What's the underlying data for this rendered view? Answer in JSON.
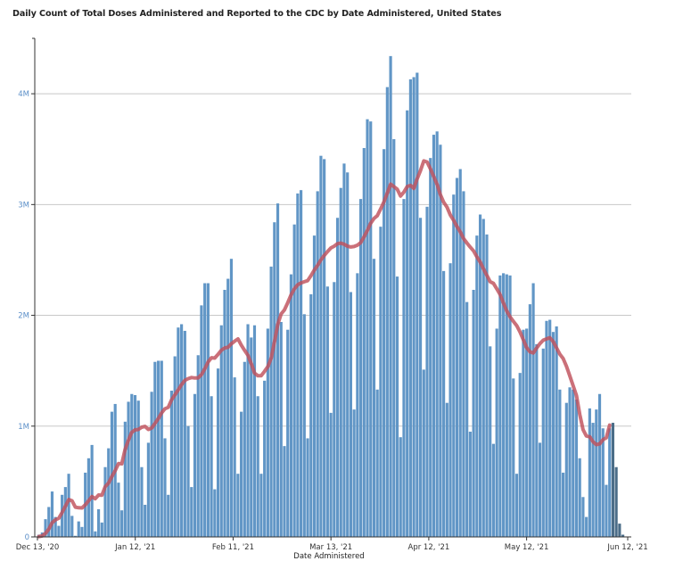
{
  "chart_data": {
    "type": "bar",
    "title": "Daily Count of Total Doses Administered and Reported to the CDC by Date Administered, United States",
    "xlabel": "Date Administered",
    "ylabel": "",
    "ylim": [
      0,
      4500000
    ],
    "y_ticks": [
      0,
      1000000,
      2000000,
      3000000,
      4000000
    ],
    "y_tick_labels": [
      "0",
      "1M",
      "2M",
      "3M",
      "4M"
    ],
    "x_range_days": [
      0,
      181
    ],
    "x_ticks_days": [
      0,
      30,
      60,
      90,
      120,
      150,
      181
    ],
    "x_tick_labels": [
      "Dec 13, '20",
      "Jan 12, '21",
      "Feb 11, '21",
      "Mar 13, '21",
      "Apr 12, '21",
      "May 12, '21",
      "Jun 12, '21"
    ],
    "grid": true,
    "start_date": "Dec 13, '20",
    "values_millions": [
      0.02,
      0.04,
      0.16,
      0.27,
      0.41,
      0.18,
      0.1,
      0.38,
      0.45,
      0.57,
      0.19,
      0.01,
      0.14,
      0.09,
      0.58,
      0.71,
      0.83,
      0.05,
      0.25,
      0.13,
      0.63,
      0.8,
      1.13,
      1.2,
      0.49,
      0.24,
      1.04,
      1.22,
      1.29,
      1.28,
      1.23,
      0.63,
      0.29,
      0.85,
      1.31,
      1.58,
      1.59,
      1.59,
      0.89,
      0.38,
      1.32,
      1.63,
      1.89,
      1.92,
      1.86,
      1.0,
      0.45,
      1.29,
      1.64,
      2.09,
      2.29,
      2.29,
      1.27,
      0.43,
      1.52,
      1.91,
      2.23,
      2.33,
      2.51,
      1.44,
      0.57,
      1.13,
      1.58,
      1.92,
      1.8,
      1.91,
      1.27,
      0.57,
      1.41,
      1.88,
      2.44,
      2.84,
      3.01,
      1.94,
      0.82,
      1.87,
      2.37,
      2.82,
      3.1,
      3.13,
      2.01,
      0.89,
      2.19,
      2.72,
      3.12,
      3.44,
      3.41,
      2.26,
      1.12,
      2.3,
      2.88,
      3.15,
      3.37,
      3.29,
      2.21,
      1.15,
      2.38,
      3.05,
      3.51,
      3.77,
      3.75,
      2.51,
      1.33,
      2.8,
      3.5,
      4.06,
      4.34,
      3.59,
      2.35,
      0.9,
      3.05,
      3.85,
      4.13,
      4.15,
      4.19,
      2.88,
      1.51,
      2.98,
      3.42,
      3.63,
      3.66,
      3.54,
      2.4,
      1.21,
      2.47,
      3.09,
      3.24,
      3.32,
      3.12,
      2.12,
      0.95,
      2.23,
      2.72,
      2.91,
      2.87,
      2.73,
      1.72,
      0.84,
      1.88,
      2.36,
      2.38,
      2.37,
      2.36,
      1.43,
      0.57,
      1.48,
      1.87,
      1.88,
      2.1,
      2.29,
      1.74,
      0.85,
      1.7,
      1.95,
      1.96,
      1.85,
      1.9,
      1.33,
      0.58,
      1.21,
      1.35,
      1.33,
      1.24,
      0.71,
      0.36,
      0.18,
      1.16,
      1.03,
      1.15,
      1.29,
      0.98,
      0.47,
      0.98,
      1.03,
      0.63,
      0.12,
      0.02
    ],
    "incomplete_from_index": 173,
    "series": [
      {
        "name": "Daily doses",
        "color": "#6196c6"
      },
      {
        "name": "Daily doses (incomplete reporting)",
        "color": "#4b6d88"
      },
      {
        "name": "7-day moving average",
        "color": "#c0505c",
        "window": 7
      }
    ]
  }
}
